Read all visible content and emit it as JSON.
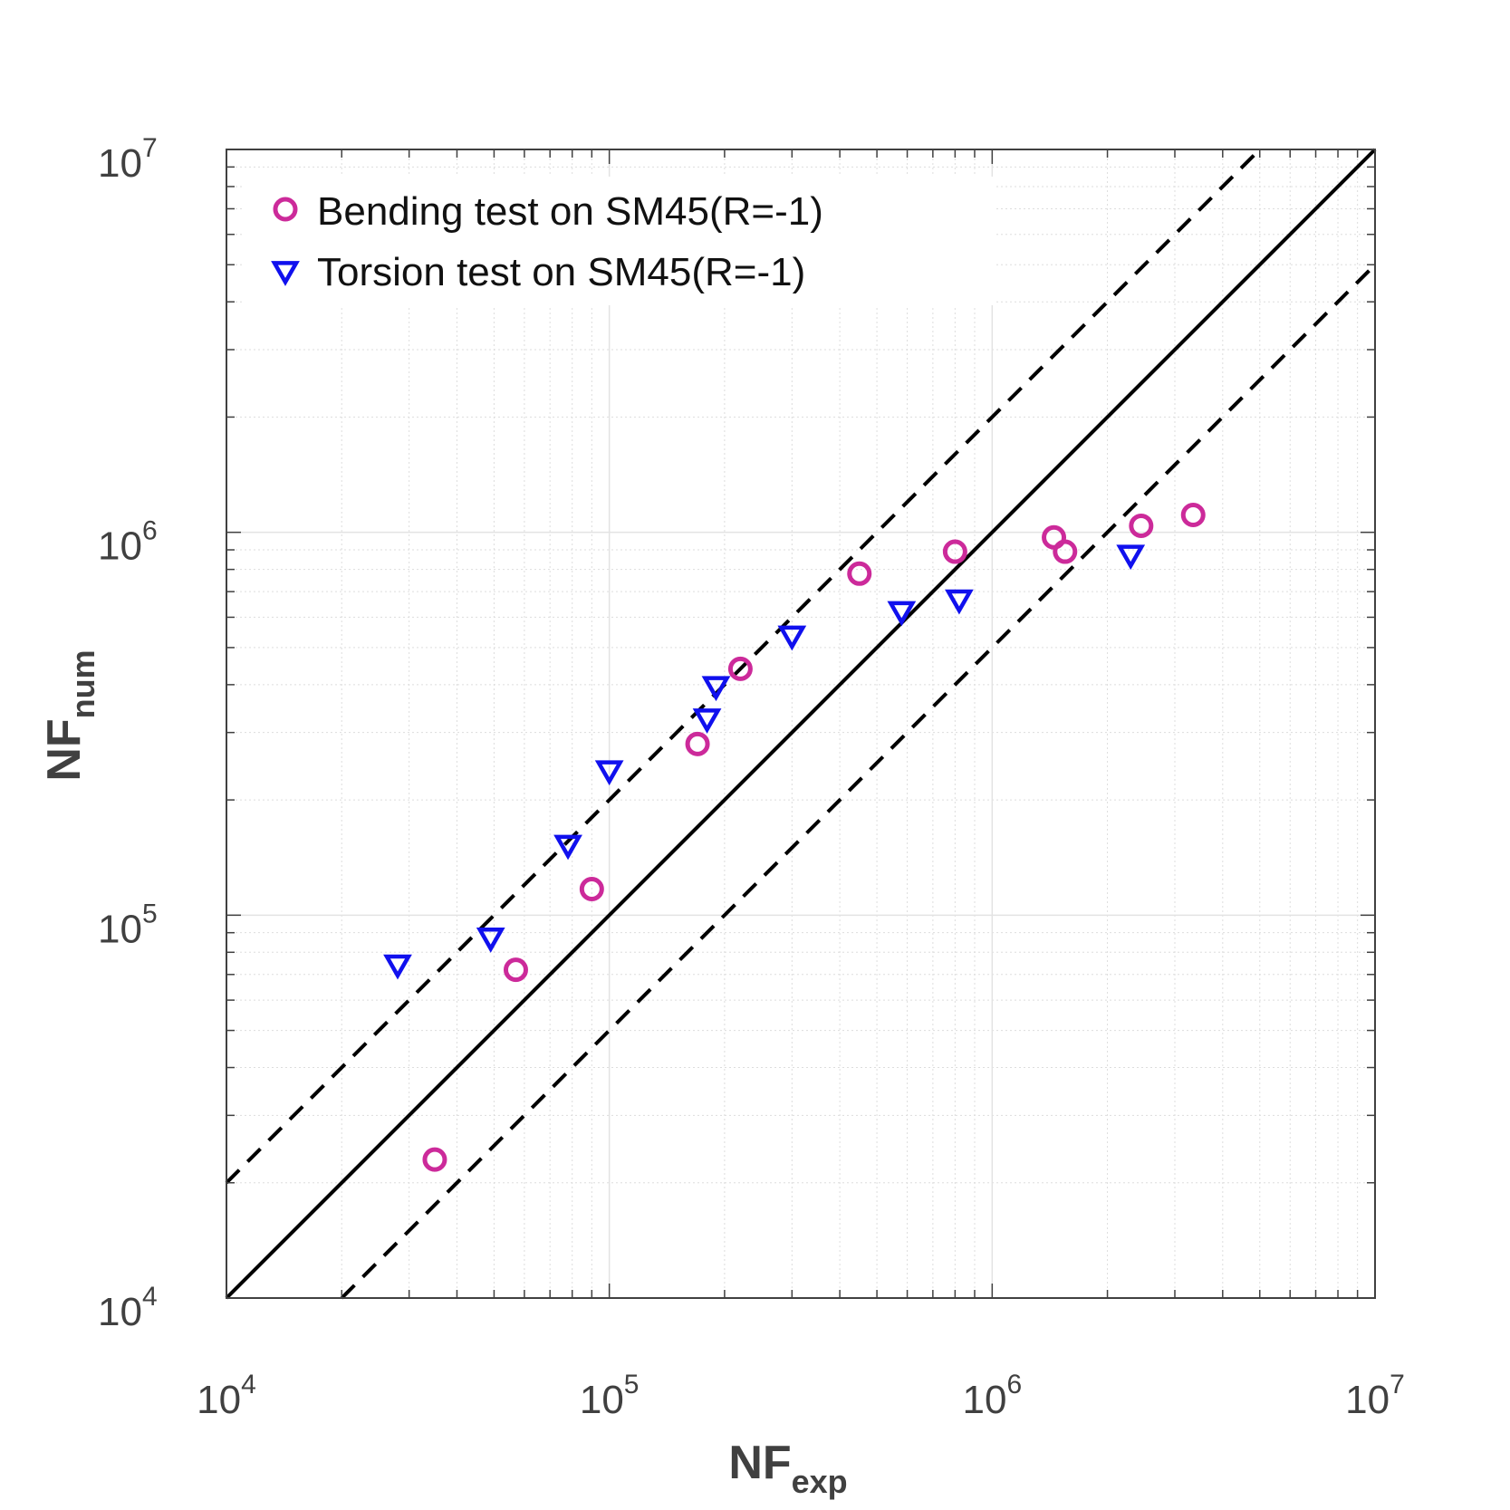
{
  "chart_data": {
    "type": "scatter",
    "x_scale": "log",
    "y_scale": "log",
    "xlim": [
      10000,
      10000000
    ],
    "ylim": [
      10000,
      10000000
    ],
    "grid": true,
    "legend_position": "top-left",
    "xlabel": {
      "main": "NF",
      "sub": "exp"
    },
    "ylabel": {
      "main": "NF",
      "sub": "num"
    },
    "x_ticks": [
      {
        "base": "10",
        "exp": "4"
      },
      {
        "base": "10",
        "exp": "5"
      },
      {
        "base": "10",
        "exp": "6"
      },
      {
        "base": "10",
        "exp": "7"
      }
    ],
    "y_ticks": [
      {
        "base": "10",
        "exp": "4"
      },
      {
        "base": "10",
        "exp": "5"
      },
      {
        "base": "10",
        "exp": "6"
      },
      {
        "base": "10",
        "exp": "7"
      }
    ],
    "reference_lines": [
      {
        "style": "solid",
        "factor": 1
      },
      {
        "style": "dashed",
        "factor": 2
      },
      {
        "style": "dashed",
        "factor": 0.5
      }
    ],
    "series": [
      {
        "name": "Bending test on SM45(R=-1)",
        "marker": "circle",
        "color": "#CC2A9A",
        "points": [
          [
            35000,
            23000
          ],
          [
            57000,
            72000
          ],
          [
            90000,
            117000
          ],
          [
            170000,
            280000
          ],
          [
            220000,
            440000
          ],
          [
            450000,
            780000
          ],
          [
            800000,
            890000
          ],
          [
            1450000,
            970000
          ],
          [
            1550000,
            890000
          ],
          [
            2450000,
            1040000
          ],
          [
            3350000,
            1110000
          ]
        ]
      },
      {
        "name": "Torsion test on SM45(R=-1)",
        "marker": "triangle-down",
        "color": "#1010EE",
        "points": [
          [
            28000,
            74000
          ],
          [
            49000,
            87000
          ],
          [
            78000,
            152000
          ],
          [
            100000,
            238000
          ],
          [
            180000,
            325000
          ],
          [
            190000,
            395000
          ],
          [
            300000,
            535000
          ],
          [
            580000,
            620000
          ],
          [
            820000,
            665000
          ],
          [
            2300000,
            870000
          ]
        ]
      }
    ]
  }
}
